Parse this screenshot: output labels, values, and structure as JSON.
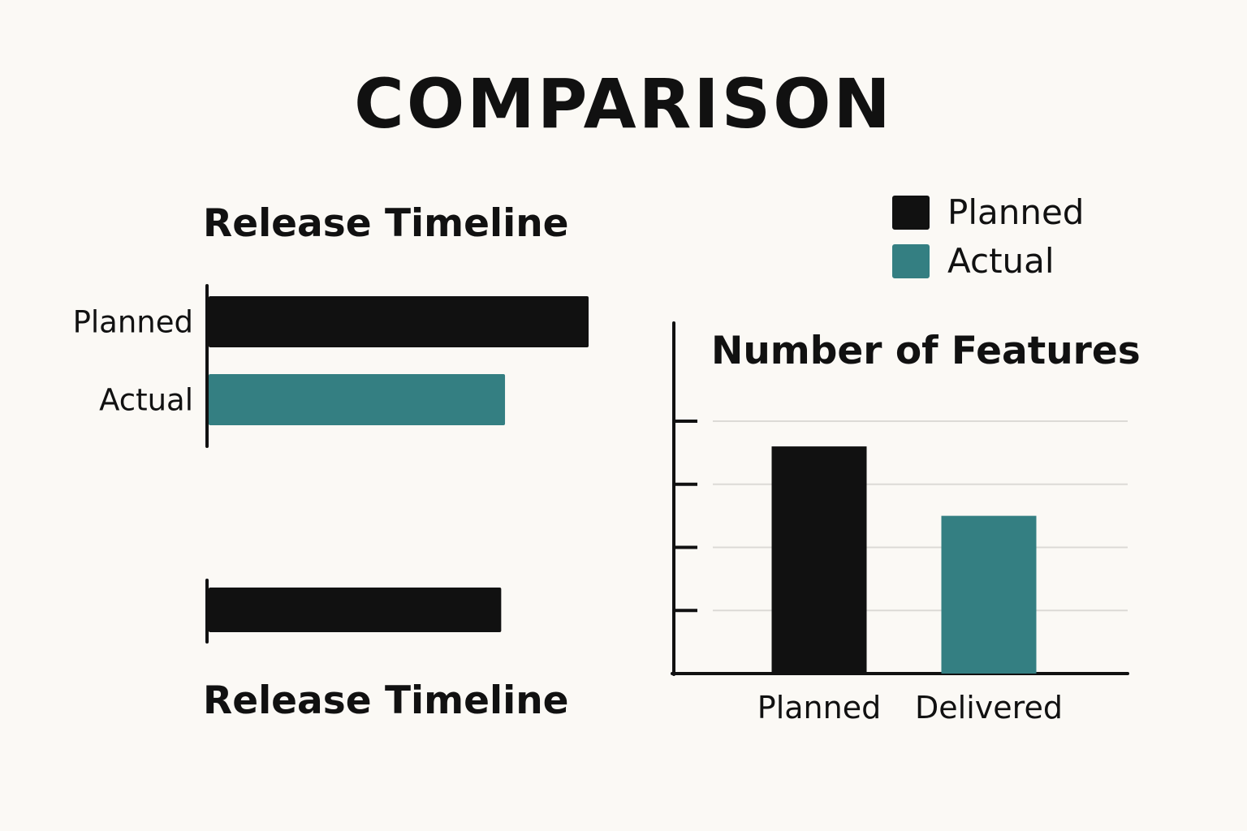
{
  "title": "COMPARISON",
  "legend": [
    {
      "label": "Planned",
      "color": "#111111"
    },
    {
      "label": "Actual",
      "color": "#347f82"
    }
  ],
  "colors": {
    "planned": "#111111",
    "actual": "#347f82",
    "grid": "#dcdad6",
    "axis": "#111111"
  },
  "chart_data": [
    {
      "type": "bar",
      "orientation": "horizontal",
      "title": "Release Timeline",
      "categories": [
        "Planned",
        "Actual"
      ],
      "values": [
        100,
        78
      ],
      "colors": [
        "#111111",
        "#347f82"
      ],
      "xlim": [
        0,
        100
      ]
    },
    {
      "type": "bar",
      "orientation": "horizontal",
      "title": "Release Timeline",
      "categories": [
        ""
      ],
      "values": [
        77
      ],
      "colors": [
        "#111111"
      ],
      "xlim": [
        0,
        100
      ]
    },
    {
      "type": "bar",
      "title": "Number of Features",
      "categories": [
        "Planned",
        "Delivered"
      ],
      "values": [
        3.6,
        2.5
      ],
      "colors": [
        "#111111",
        "#347f82"
      ],
      "ylim": [
        0,
        4.1
      ],
      "yticks": [
        1,
        2,
        3,
        4
      ],
      "grid": true
    }
  ]
}
